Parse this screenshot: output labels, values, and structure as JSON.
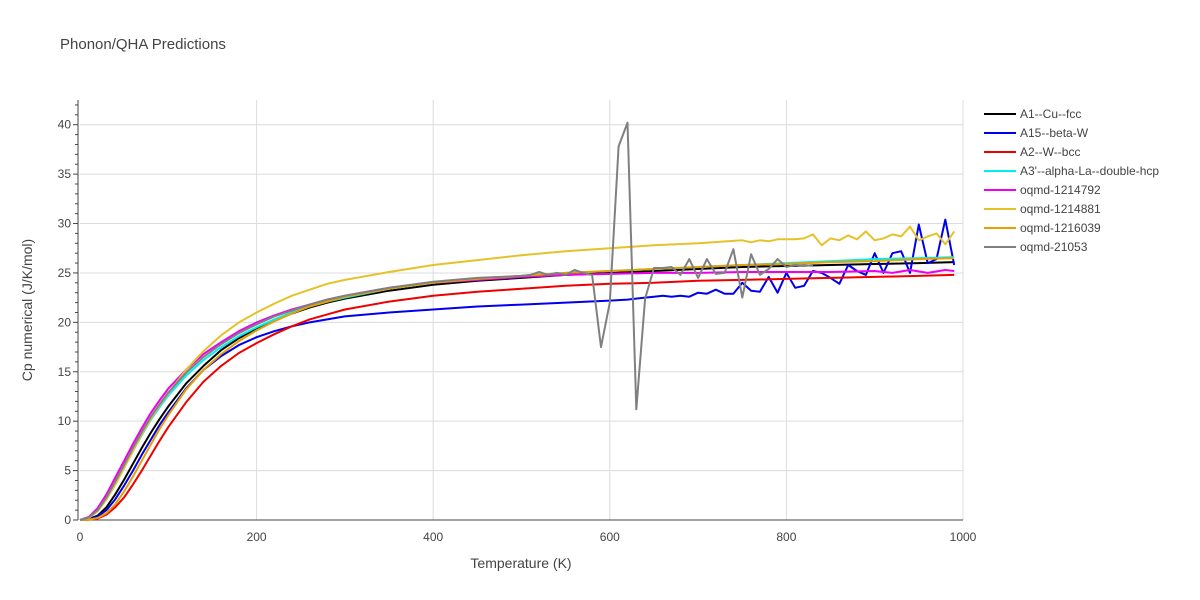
{
  "chart_data": {
    "type": "line",
    "title": "Phonon/QHA Predictions",
    "xlabel": "Temperature (K)",
    "ylabel": "Cp numerical (J/K/mol)",
    "xlim": [
      0,
      1000
    ],
    "ylim": [
      0,
      42.5
    ],
    "x_ticks": [
      0,
      200,
      400,
      600,
      800,
      1000
    ],
    "y_ticks": [
      0,
      5,
      10,
      15,
      20,
      25,
      30,
      35,
      40
    ],
    "grid": true,
    "legend_position": "right",
    "series": [
      {
        "name": "A1--Cu--fcc",
        "color": "#000000",
        "x": [
          0,
          10,
          20,
          30,
          40,
          50,
          60,
          70,
          80,
          90,
          100,
          120,
          140,
          160,
          180,
          200,
          220,
          240,
          260,
          280,
          300,
          350,
          400,
          450,
          500,
          550,
          600,
          650,
          700,
          750,
          800,
          850,
          900,
          950,
          990
        ],
        "y": [
          0,
          0.1,
          0.45,
          1.3,
          2.6,
          4.1,
          5.7,
          7.3,
          8.8,
          10.2,
          11.5,
          13.8,
          15.6,
          17.2,
          18.4,
          19.4,
          20.2,
          20.9,
          21.5,
          22.0,
          22.4,
          23.2,
          23.8,
          24.2,
          24.5,
          24.8,
          25.0,
          25.2,
          25.4,
          25.6,
          25.7,
          25.8,
          25.9,
          26.0,
          26.1
        ]
      },
      {
        "name": "A15--beta-W",
        "color": "#0000ee",
        "x": [
          0,
          10,
          20,
          30,
          40,
          50,
          60,
          70,
          80,
          90,
          100,
          120,
          140,
          160,
          180,
          200,
          220,
          240,
          260,
          280,
          300,
          350,
          400,
          450,
          500,
          550,
          600,
          620,
          640,
          650,
          660,
          670,
          680,
          690,
          700,
          710,
          720,
          730,
          740,
          750,
          760,
          770,
          780,
          790,
          800,
          810,
          820,
          830,
          840,
          850,
          860,
          870,
          880,
          890,
          900,
          910,
          920,
          930,
          940,
          950,
          960,
          970,
          980,
          990
        ],
        "y": [
          0,
          0.05,
          0.35,
          1.0,
          2.1,
          3.5,
          5.0,
          6.6,
          8.1,
          9.6,
          10.9,
          13.3,
          15.2,
          16.6,
          17.7,
          18.5,
          19.1,
          19.6,
          20.0,
          20.3,
          20.6,
          21.0,
          21.3,
          21.6,
          21.8,
          22.0,
          22.2,
          22.3,
          22.5,
          22.6,
          22.7,
          22.6,
          22.7,
          22.6,
          23.0,
          22.9,
          23.3,
          22.9,
          22.9,
          24.0,
          23.2,
          23.1,
          24.6,
          23.0,
          25.0,
          23.5,
          23.7,
          25.2,
          25.0,
          24.5,
          23.9,
          25.8,
          25.2,
          24.8,
          27.0,
          25.0,
          27.0,
          27.2,
          25.0,
          29.9,
          26.0,
          26.4,
          30.4,
          25.8
        ]
      },
      {
        "name": "A2--W--bcc",
        "color": "#ee0000",
        "x": [
          0,
          10,
          20,
          30,
          40,
          50,
          60,
          70,
          80,
          90,
          100,
          120,
          140,
          160,
          180,
          200,
          220,
          240,
          260,
          280,
          300,
          350,
          400,
          450,
          500,
          550,
          600,
          650,
          700,
          750,
          800,
          850,
          900,
          950,
          990
        ],
        "y": [
          0,
          0.02,
          0.15,
          0.55,
          1.3,
          2.3,
          3.6,
          5.0,
          6.5,
          8.0,
          9.4,
          11.9,
          14.0,
          15.6,
          16.9,
          17.9,
          18.8,
          19.6,
          20.3,
          20.8,
          21.3,
          22.1,
          22.7,
          23.1,
          23.4,
          23.7,
          23.9,
          24.0,
          24.2,
          24.3,
          24.4,
          24.5,
          24.6,
          24.7,
          24.8
        ]
      },
      {
        "name": "A3'--alpha-La--double-hcp",
        "color": "#00eeee",
        "x": [
          0,
          10,
          20,
          30,
          40,
          50,
          60,
          70,
          80,
          90,
          100,
          120,
          140,
          160,
          180,
          200,
          220,
          240,
          260,
          280,
          300,
          350,
          400,
          450,
          500,
          550,
          600,
          650,
          700,
          750,
          800,
          850,
          900,
          950,
          990
        ],
        "y": [
          0,
          0.2,
          0.9,
          2.1,
          3.6,
          5.3,
          7.0,
          8.6,
          10.1,
          11.4,
          12.6,
          14.6,
          16.2,
          17.5,
          18.6,
          19.5,
          20.3,
          21.0,
          21.6,
          22.1,
          22.5,
          23.4,
          24.0,
          24.4,
          24.7,
          25.0,
          25.2,
          25.4,
          25.6,
          25.8,
          26.0,
          26.2,
          26.4,
          26.5,
          26.6
        ]
      },
      {
        "name": "oqmd-1214792",
        "color": "#ee00ee",
        "x": [
          0,
          10,
          20,
          30,
          40,
          50,
          60,
          70,
          80,
          90,
          100,
          120,
          140,
          160,
          180,
          200,
          220,
          240,
          260,
          280,
          300,
          350,
          400,
          450,
          500,
          550,
          600,
          650,
          700,
          750,
          800,
          850,
          900,
          920,
          940,
          960,
          980,
          990
        ],
        "y": [
          0,
          0.3,
          1.2,
          2.6,
          4.3,
          6.0,
          7.7,
          9.3,
          10.8,
          12.1,
          13.3,
          15.2,
          16.8,
          18.0,
          19.1,
          20.0,
          20.7,
          21.3,
          21.8,
          22.3,
          22.7,
          23.5,
          24.0,
          24.3,
          24.6,
          24.8,
          24.9,
          25.0,
          25.0,
          25.1,
          25.1,
          25.1,
          25.2,
          25.0,
          25.3,
          25.0,
          25.3,
          25.2
        ]
      },
      {
        "name": "oqmd-1214881",
        "color": "#e6c229",
        "x": [
          0,
          10,
          20,
          30,
          40,
          50,
          60,
          70,
          80,
          90,
          100,
          120,
          140,
          160,
          180,
          200,
          220,
          240,
          260,
          280,
          300,
          350,
          400,
          450,
          500,
          550,
          600,
          650,
          700,
          750,
          760,
          770,
          780,
          790,
          800,
          810,
          820,
          830,
          840,
          850,
          860,
          870,
          880,
          890,
          900,
          910,
          920,
          930,
          940,
          950,
          960,
          970,
          980,
          990
        ],
        "y": [
          0,
          0.2,
          0.9,
          2.1,
          3.6,
          5.3,
          7.0,
          8.7,
          10.2,
          11.6,
          12.8,
          15.2,
          17.1,
          18.7,
          20.0,
          21.0,
          21.9,
          22.7,
          23.3,
          23.9,
          24.3,
          25.1,
          25.8,
          26.3,
          26.8,
          27.2,
          27.5,
          27.8,
          28.0,
          28.3,
          28.1,
          28.3,
          28.2,
          28.4,
          28.4,
          28.4,
          28.5,
          28.9,
          27.8,
          28.5,
          28.3,
          28.8,
          28.4,
          29.2,
          28.3,
          28.5,
          28.9,
          28.7,
          29.7,
          28.3,
          28.7,
          29.0,
          27.9,
          29.2
        ]
      },
      {
        "name": "oqmd-1216039",
        "color": "#e6a000",
        "x": [
          0,
          10,
          20,
          30,
          40,
          50,
          60,
          70,
          80,
          90,
          100,
          120,
          140,
          160,
          180,
          200,
          220,
          240,
          260,
          280,
          300,
          350,
          400,
          450,
          500,
          550,
          600,
          650,
          700,
          750,
          800,
          850,
          900,
          950,
          990
        ],
        "y": [
          0,
          0.03,
          0.2,
          0.7,
          1.6,
          2.9,
          4.4,
          6.0,
          7.6,
          9.2,
          10.6,
          13.2,
          15.2,
          16.8,
          18.1,
          19.2,
          20.1,
          20.9,
          21.6,
          22.1,
          22.6,
          23.4,
          24.0,
          24.4,
          24.7,
          25.0,
          25.2,
          25.4,
          25.6,
          25.8,
          25.9,
          26.1,
          26.2,
          26.4,
          26.5
        ]
      },
      {
        "name": "oqmd-21053",
        "color": "#808080",
        "x": [
          0,
          10,
          20,
          30,
          40,
          50,
          60,
          70,
          80,
          90,
          100,
          120,
          140,
          160,
          180,
          200,
          220,
          240,
          260,
          280,
          300,
          350,
          400,
          450,
          500,
          510,
          520,
          530,
          540,
          550,
          560,
          570,
          580,
          590,
          600,
          610,
          620,
          630,
          640,
          650,
          660,
          670,
          680,
          690,
          700,
          710,
          720,
          730,
          740,
          750,
          760,
          770,
          780,
          790,
          800,
          810,
          820,
          830
        ],
        "y": [
          0,
          0.25,
          1.0,
          2.3,
          3.9,
          5.6,
          7.3,
          8.9,
          10.4,
          11.7,
          12.9,
          14.9,
          16.5,
          17.8,
          18.9,
          19.8,
          20.6,
          21.2,
          21.8,
          22.3,
          22.7,
          23.5,
          24.1,
          24.5,
          24.7,
          24.8,
          25.1,
          24.8,
          25.0,
          24.8,
          25.3,
          25.0,
          24.8,
          17.5,
          22.0,
          37.8,
          40.2,
          11.2,
          22.4,
          25.5,
          25.5,
          25.6,
          24.8,
          26.4,
          24.5,
          26.4,
          24.9,
          25.0,
          27.4,
          22.5,
          26.9,
          24.8,
          25.4,
          26.4,
          25.6,
          25.8,
          25.7,
          25.8
        ]
      }
    ]
  }
}
